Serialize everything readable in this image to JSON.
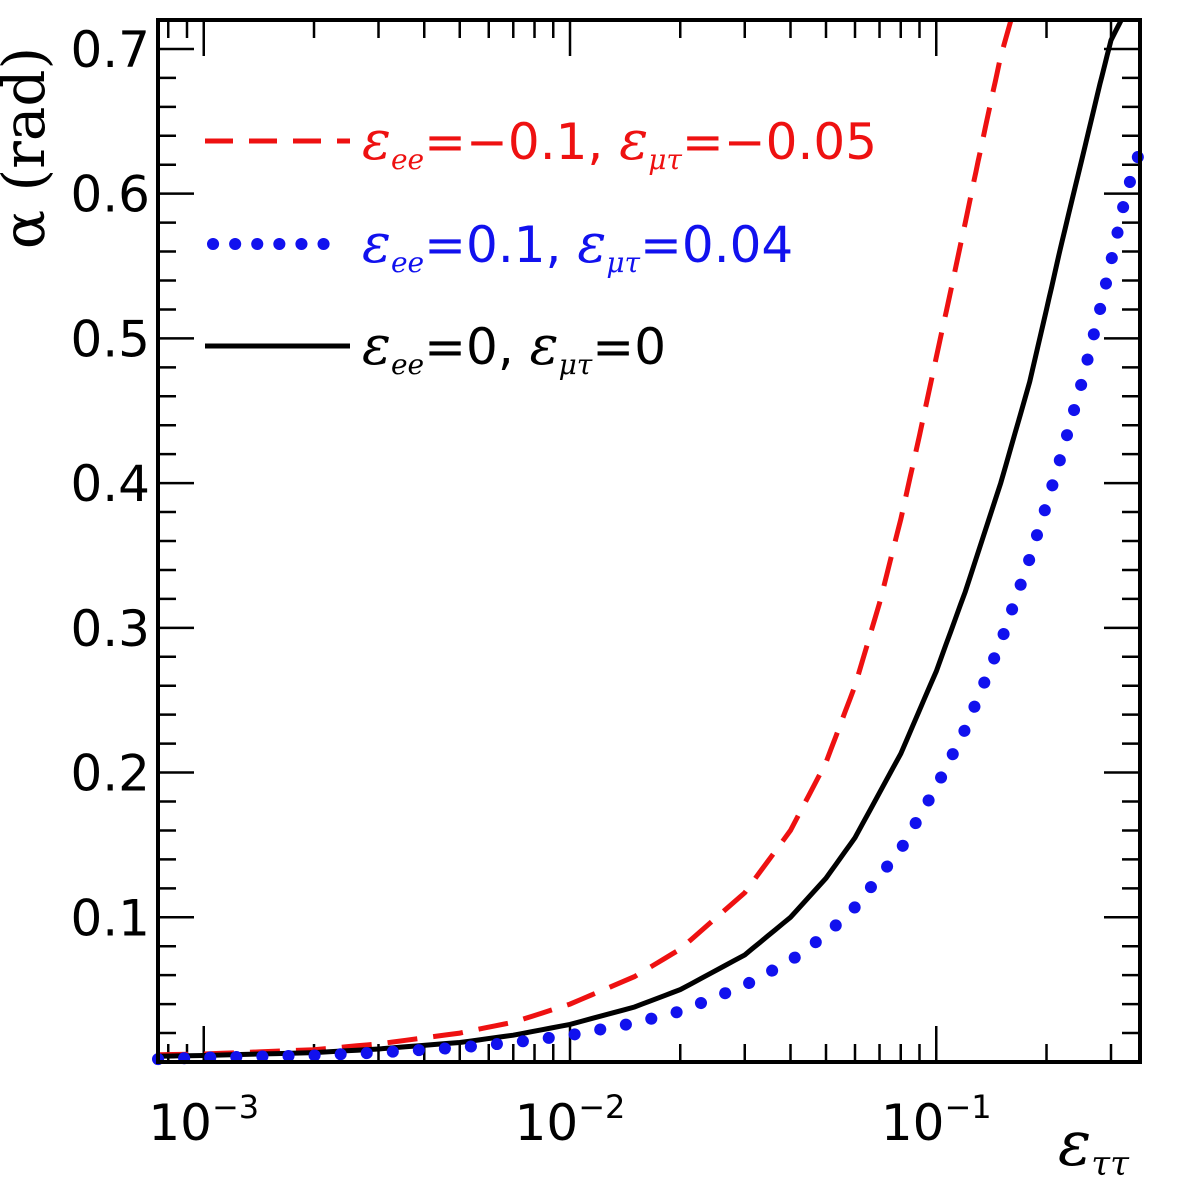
{
  "chart_data": {
    "type": "line",
    "x_scale": "log",
    "xlim": [
      0.00075,
      0.36
    ],
    "ylim": [
      0.0,
      0.72
    ],
    "xlabel_symbol": "ε",
    "xlabel_sub": "ττ",
    "ylabel": "α (rad)",
    "x_ticks": [
      {
        "value": 0.001,
        "base": "10",
        "exp": "−3"
      },
      {
        "value": 0.01,
        "base": "10",
        "exp": "−2"
      },
      {
        "value": 0.1,
        "base": "10",
        "exp": "−1"
      }
    ],
    "y_ticks": [
      {
        "value": 0.1,
        "label": "0.1"
      },
      {
        "value": 0.2,
        "label": "0.2"
      },
      {
        "value": 0.3,
        "label": "0.3"
      },
      {
        "value": 0.4,
        "label": "0.4"
      },
      {
        "value": 0.5,
        "label": "0.5"
      },
      {
        "value": 0.6,
        "label": "0.6"
      },
      {
        "value": 0.7,
        "label": "0.7"
      }
    ],
    "legend_position": "top-left",
    "series": [
      {
        "id": "red",
        "style": "dashed",
        "color": "#ee1111",
        "legend": {
          "p1_sub": "ee",
          "p1_val": "=−0.1, ",
          "p2_sub": "μτ",
          "p2_val": "=−0.05"
        },
        "x": [
          0.00075,
          0.001,
          0.002,
          0.003,
          0.005,
          0.007,
          0.01,
          0.015,
          0.02,
          0.03,
          0.04,
          0.05,
          0.06,
          0.07,
          0.08,
          0.09,
          0.1,
          0.11,
          0.12,
          0.13,
          0.14,
          0.15,
          0.16
        ],
        "y": [
          0.005,
          0.0055,
          0.0085,
          0.0125,
          0.02,
          0.0275,
          0.04,
          0.059,
          0.078,
          0.117,
          0.16,
          0.207,
          0.26,
          0.317,
          0.375,
          0.433,
          0.487,
          0.535,
          0.58,
          0.622,
          0.66,
          0.695,
          0.72
        ]
      },
      {
        "id": "black",
        "style": "solid",
        "color": "#000000",
        "legend": {
          "p1_sub": "ee",
          "p1_val": "=0, ",
          "p2_sub": "μτ",
          "p2_val": "=0"
        },
        "x": [
          0.00075,
          0.001,
          0.002,
          0.003,
          0.005,
          0.007,
          0.01,
          0.015,
          0.02,
          0.03,
          0.04,
          0.05,
          0.06,
          0.08,
          0.1,
          0.12,
          0.15,
          0.18,
          0.2,
          0.22,
          0.25,
          0.28,
          0.3,
          0.32
        ],
        "y": [
          0.004,
          0.0045,
          0.0065,
          0.009,
          0.0135,
          0.0185,
          0.026,
          0.038,
          0.05,
          0.074,
          0.1,
          0.127,
          0.155,
          0.213,
          0.27,
          0.325,
          0.4,
          0.47,
          0.52,
          0.566,
          0.624,
          0.676,
          0.706,
          0.72
        ]
      },
      {
        "id": "blue",
        "style": "dotted",
        "color": "#1111ee",
        "legend": {
          "p1_sub": "ee",
          "p1_val": "=0.1, ",
          "p2_sub": "μτ",
          "p2_val": "=0.04"
        },
        "x": [
          0.00075,
          0.001,
          0.002,
          0.003,
          0.005,
          0.007,
          0.01,
          0.015,
          0.02,
          0.03,
          0.04,
          0.05,
          0.06,
          0.08,
          0.1,
          0.12,
          0.15,
          0.18,
          0.2,
          0.22,
          0.25,
          0.28,
          0.3,
          0.33,
          0.36
        ],
        "y": [
          0.002,
          0.003,
          0.0045,
          0.0065,
          0.01,
          0.0135,
          0.0185,
          0.027,
          0.035,
          0.053,
          0.07,
          0.088,
          0.107,
          0.147,
          0.19,
          0.23,
          0.29,
          0.348,
          0.385,
          0.42,
          0.47,
          0.52,
          0.553,
          0.6,
          0.63
        ]
      }
    ]
  }
}
